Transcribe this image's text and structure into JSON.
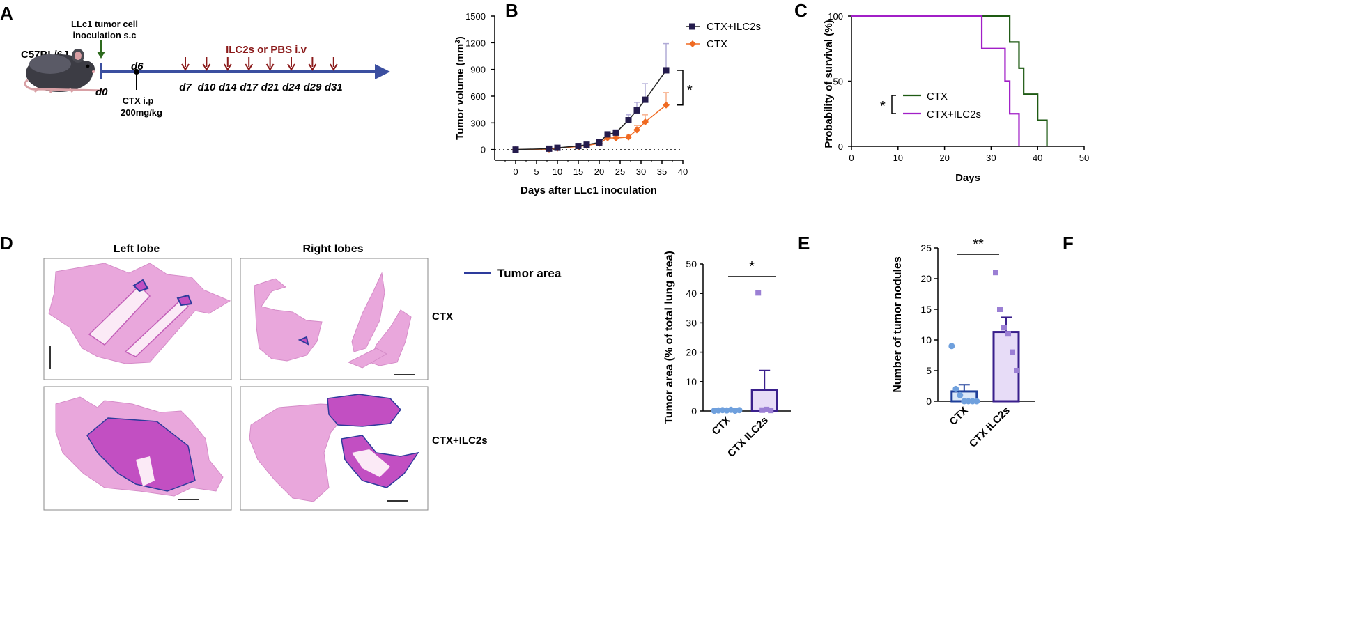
{
  "panels": {
    "A": "A",
    "B": "B",
    "C": "C",
    "D": "D",
    "E": "E",
    "F": "F"
  },
  "colors": {
    "timeline": "#3b4fa0",
    "dose_arrow": "#8b1a1a",
    "inoc_arrow": "#2e6b1f",
    "ctx_ilc2_square": "#241b4d",
    "ctx_orange": "#f06a22",
    "surv_ctx": "#1e5a13",
    "surv_ctx_ilc2": "#a11fc7",
    "tumor_area_line": "#2d3b9c",
    "bar_ctx_fill": "#dbe8f8",
    "bar_ctx_edge": "#1e3f9a",
    "bar_ctx_dot": "#6fa0dd",
    "bar_ilc2_fill": "#e7dcf7",
    "bar_ilc2_edge": "#3a1f8c",
    "bar_ilc2_dot": "#9b7fd4",
    "he_pink": "#e9a7dc",
    "he_dark": "#c24fc2"
  },
  "panelA": {
    "mouse_label": "C57BL/6J",
    "inoculation_label": [
      "LLc1 tumor cell",
      "inoculation s.c"
    ],
    "d0_label": "d0",
    "d6_label": "d6",
    "ctx_label": [
      "CTX i.p",
      "200mg/kg"
    ],
    "treatment_label": "ILC2s or PBS i.v",
    "dose_days": [
      "d7",
      "d10",
      "d14",
      "d17",
      "d21",
      "d24",
      "d29",
      "d31"
    ]
  },
  "chart_data": [
    {
      "panel": "B",
      "type": "line",
      "xlabel": "Days after LLc1 inoculation",
      "ylabel_main": "Tumor volume (mm",
      "ylabel_sup": "3",
      "ylabel_close": ")",
      "xlim": [
        -5,
        40
      ],
      "ylim": [
        -120,
        1500
      ],
      "xticks": [
        0,
        5,
        10,
        15,
        20,
        25,
        30,
        35,
        40
      ],
      "yticks": [
        0,
        300,
        600,
        900,
        1200,
        1500
      ],
      "significance": "*",
      "series": [
        {
          "name": "CTX+ILC2s",
          "marker": "square",
          "x": [
            0,
            8,
            10,
            15,
            17,
            20,
            22,
            24,
            27,
            29,
            31,
            36
          ],
          "y": [
            0,
            10,
            20,
            40,
            55,
            80,
            170,
            190,
            330,
            440,
            560,
            890
          ],
          "err": [
            0,
            5,
            8,
            10,
            12,
            20,
            30,
            30,
            60,
            90,
            180,
            300
          ]
        },
        {
          "name": "CTX",
          "marker": "diamond",
          "x": [
            0,
            8,
            10,
            15,
            17,
            20,
            22,
            24,
            27,
            29,
            31,
            36
          ],
          "y": [
            0,
            5,
            15,
            35,
            45,
            70,
            130,
            130,
            140,
            220,
            310,
            500
          ],
          "err": [
            0,
            4,
            6,
            8,
            10,
            15,
            20,
            20,
            30,
            50,
            80,
            140
          ]
        }
      ]
    },
    {
      "panel": "C",
      "type": "line",
      "subtype": "step",
      "xlabel": "Days",
      "ylabel": "Probability of survival (%)",
      "xlim": [
        0,
        50
      ],
      "ylim": [
        0,
        100
      ],
      "xticks": [
        0,
        10,
        20,
        30,
        40,
        50
      ],
      "yticks": [
        0,
        50,
        100
      ],
      "significance": "*",
      "series": [
        {
          "name": "CTX",
          "x": [
            0,
            34,
            34,
            36,
            36,
            37,
            37,
            40,
            40,
            42,
            42
          ],
          "y": [
            100,
            100,
            80,
            80,
            60,
            60,
            40,
            40,
            20,
            20,
            0
          ]
        },
        {
          "name": "CTX+ILC2s",
          "x": [
            0,
            28,
            28,
            33,
            33,
            34,
            34,
            36,
            36
          ],
          "y": [
            100,
            100,
            75,
            75,
            50,
            50,
            25,
            25,
            0
          ]
        }
      ]
    },
    {
      "panel": "E",
      "type": "bar",
      "ylabel": "Tumor area (% of total lung area)",
      "categories": [
        "CTX",
        "CTX ILC2s"
      ],
      "values": [
        0.3,
        7.0
      ],
      "errors": [
        0.2,
        6.8
      ],
      "points": [
        [
          0.1,
          0.2,
          0.3,
          0.2,
          0.4,
          0.1,
          0.3
        ],
        [
          40.2,
          0.3,
          0.5,
          0.2
        ]
      ],
      "ylim": [
        0,
        50
      ],
      "yticks": [
        0,
        10,
        20,
        30,
        40,
        50
      ],
      "significance": "*"
    },
    {
      "panel": "F",
      "type": "bar",
      "ylabel": "Number of tumor nodules",
      "categories": [
        "CTX",
        "CTX ILC2s"
      ],
      "values": [
        1.6,
        11.3
      ],
      "errors": [
        1.1,
        2.4
      ],
      "points": [
        [
          9,
          2,
          1,
          0,
          0,
          0,
          0
        ],
        [
          21,
          15,
          12,
          11,
          8,
          5
        ]
      ],
      "ylim": [
        0,
        25
      ],
      "yticks": [
        0,
        5,
        10,
        15,
        20,
        25
      ],
      "significance": "**"
    }
  ],
  "panelD": {
    "col_left": "Left lobe",
    "col_right": "Right lobes",
    "legend": "Tumor area",
    "row1": "CTX",
    "row2": "CTX+ILC2s"
  }
}
